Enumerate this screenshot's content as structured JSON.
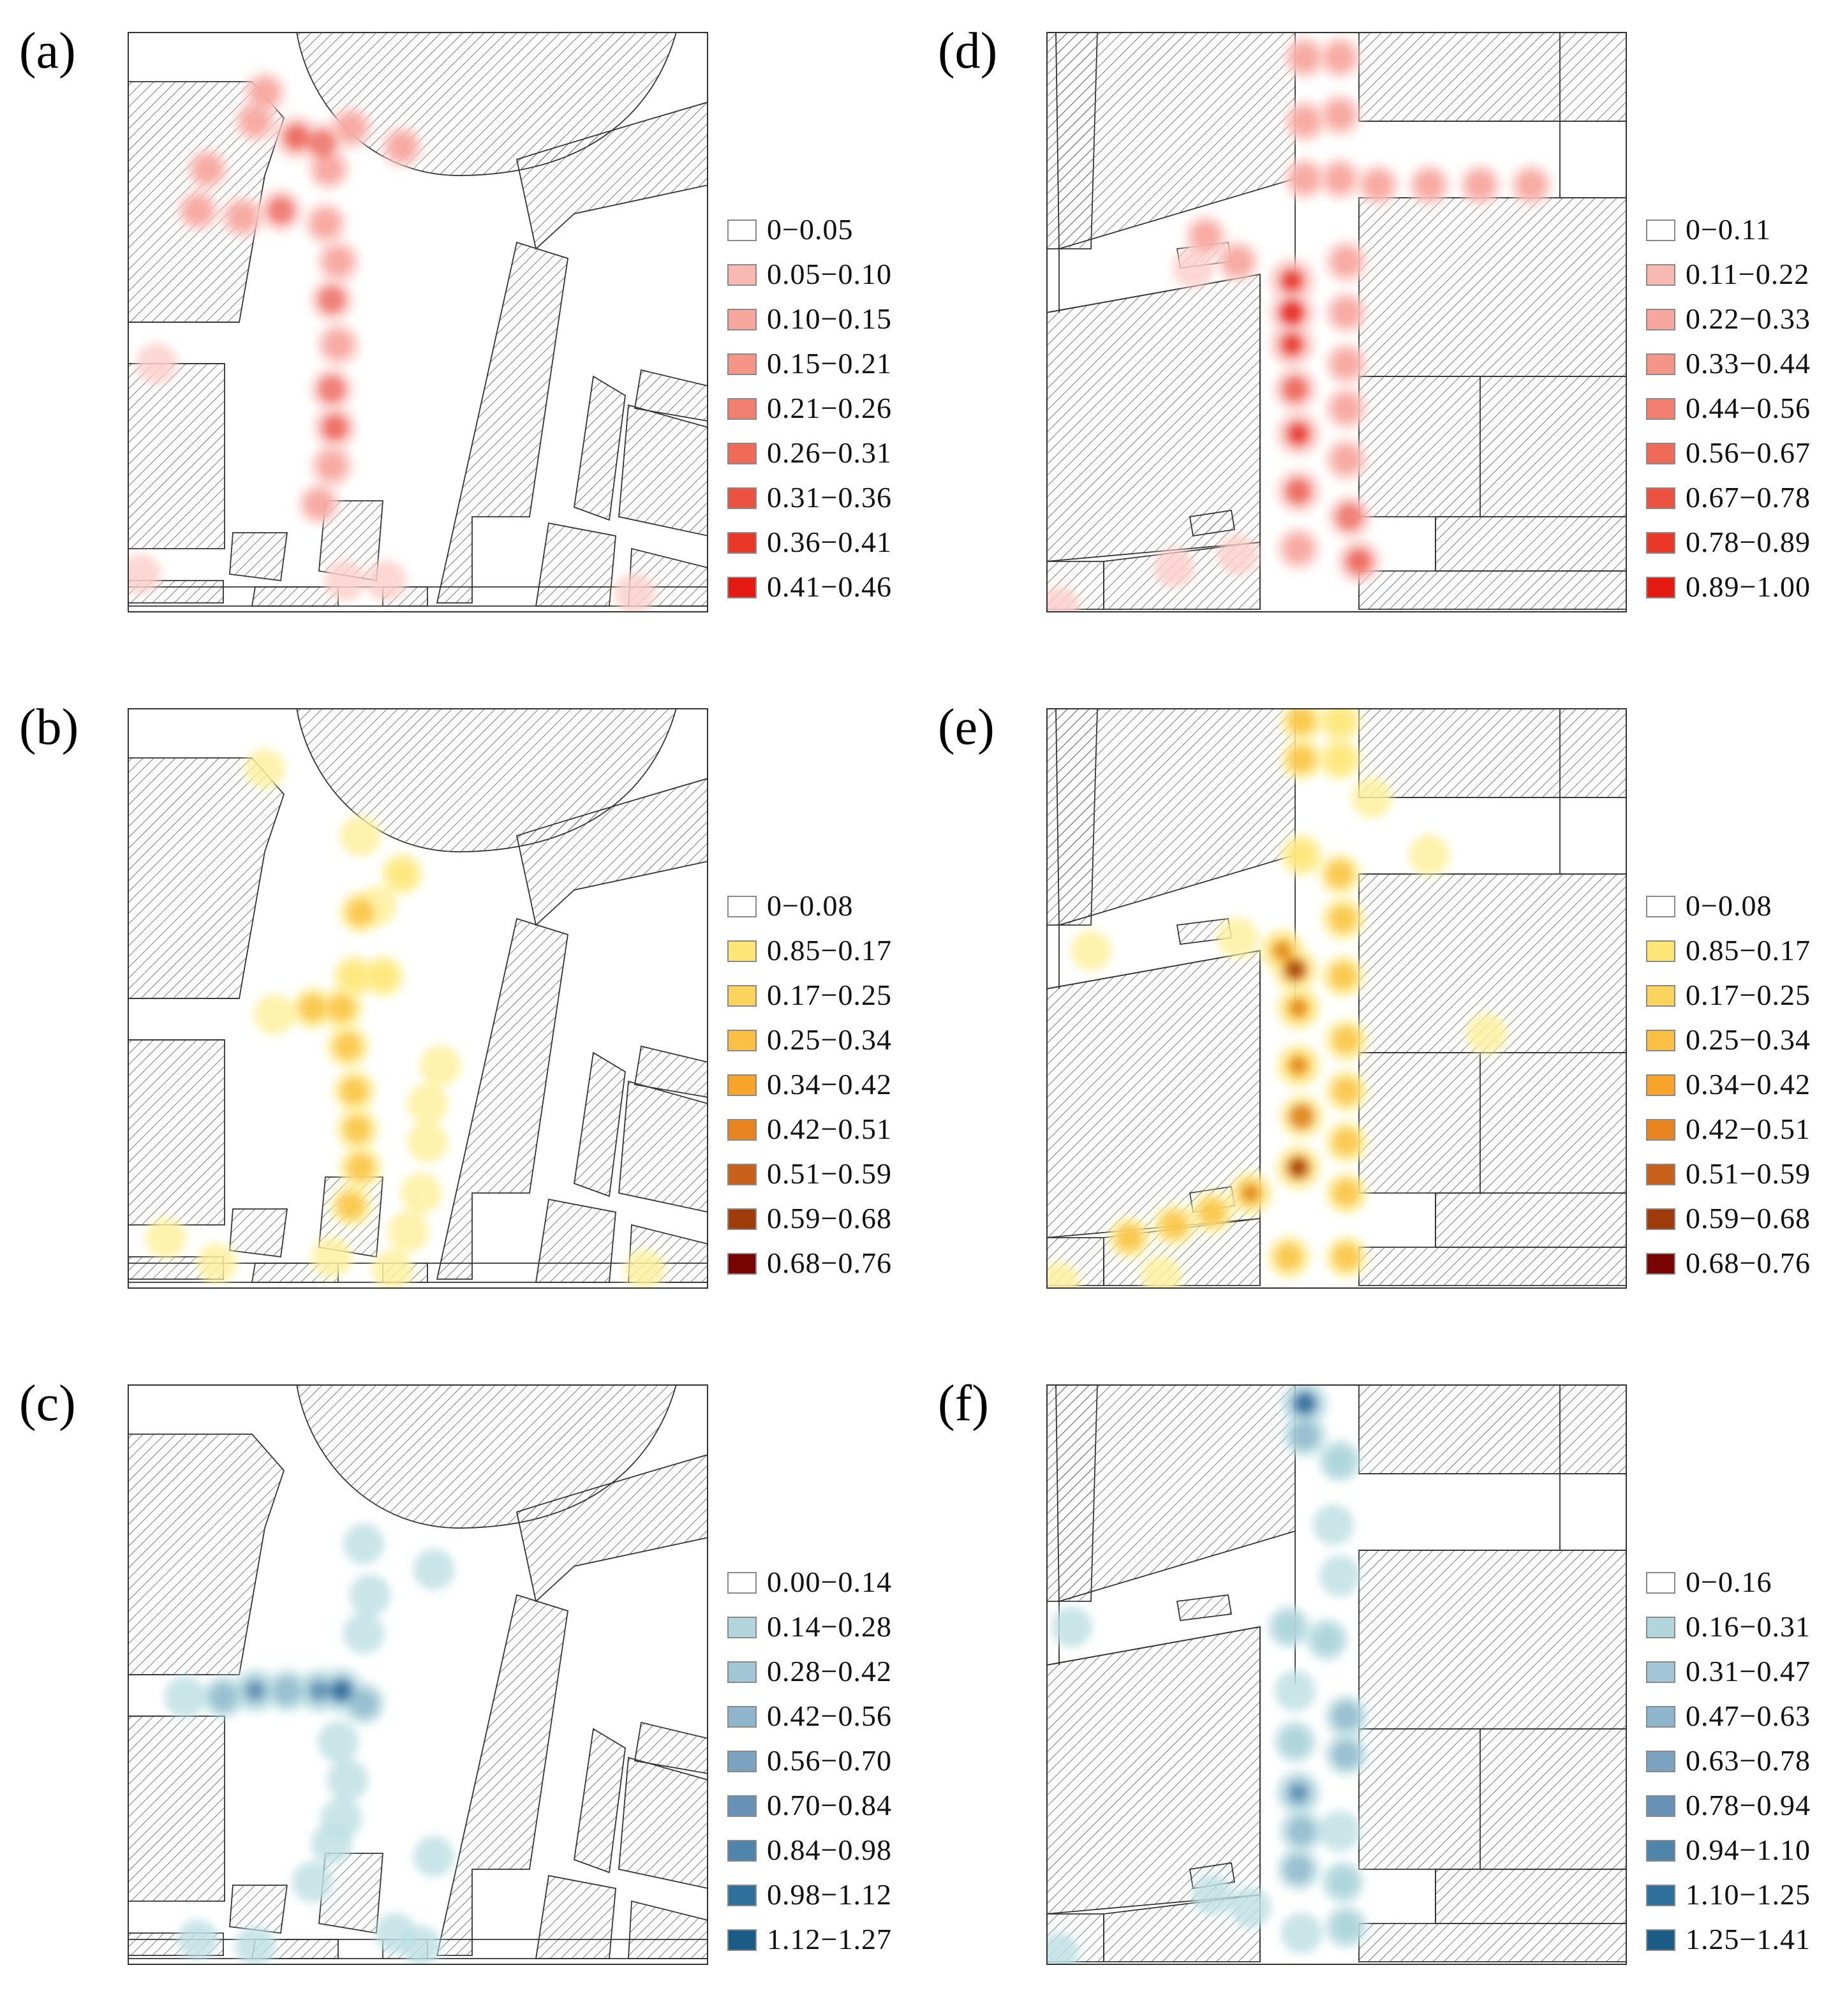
{
  "panels": {
    "a": {
      "label": "(a)",
      "layout": "A",
      "ramp": "red",
      "legend": [
        "0−0.05",
        "0.05−0.10",
        "0.10−0.15",
        "0.15−0.21",
        "0.21−0.26",
        "0.26−0.31",
        "0.31−0.36",
        "0.36−0.41",
        "0.41−0.46"
      ],
      "swatch_colors": [
        "#ffffff",
        "#f9b9b3",
        "#f8a79e",
        "#f59587",
        "#f27f6f",
        "#ef6a58",
        "#ec5240",
        "#e93827",
        "#e51a12"
      ]
    },
    "b": {
      "label": "(b)",
      "layout": "A",
      "ramp": "yellow",
      "legend": [
        "0−0.08",
        "0.85−0.17",
        "0.17−0.25",
        "0.25−0.34",
        "0.34−0.42",
        "0.42−0.51",
        "0.51−0.59",
        "0.59−0.68",
        "0.68−0.76"
      ],
      "swatch_colors": [
        "#ffffff",
        "#fde676",
        "#fcd35b",
        "#fbc043",
        "#f9a52c",
        "#e98520",
        "#c8621a",
        "#a03c0c",
        "#780404"
      ]
    },
    "c": {
      "label": "(c)",
      "layout": "A",
      "ramp": "blue",
      "legend": [
        "0.00−0.14",
        "0.14−0.28",
        "0.28−0.42",
        "0.42−0.56",
        "0.56−0.70",
        "0.70−0.84",
        "0.84−0.98",
        "0.98−1.12",
        "1.12−1.27"
      ],
      "swatch_colors": [
        "#ffffff",
        "#b3d5de",
        "#a2c6d5",
        "#8fb5cc",
        "#7ba3c0",
        "#6892b5",
        "#4f84ab",
        "#2f6f9c",
        "#1b5c87"
      ]
    },
    "d": {
      "label": "(d)",
      "layout": "B",
      "ramp": "red",
      "legend": [
        "0−0.11",
        "0.11−0.22",
        "0.22−0.33",
        "0.33−0.44",
        "0.44−0.56",
        "0.56−0.67",
        "0.67−0.78",
        "0.78−0.89",
        "0.89−1.00"
      ],
      "swatch_colors": [
        "#ffffff",
        "#f9b9b3",
        "#f8a79e",
        "#f59587",
        "#f27f6f",
        "#ef6a58",
        "#ec5240",
        "#e93827",
        "#e51a12"
      ]
    },
    "e": {
      "label": "(e)",
      "layout": "B",
      "ramp": "yellow",
      "legend": [
        "0−0.08",
        "0.85−0.17",
        "0.17−0.25",
        "0.25−0.34",
        "0.34−0.42",
        "0.42−0.51",
        "0.51−0.59",
        "0.59−0.68",
        "0.68−0.76"
      ],
      "swatch_colors": [
        "#ffffff",
        "#fde676",
        "#fcd35b",
        "#fbc043",
        "#f9a52c",
        "#e98520",
        "#c8621a",
        "#a03c0c",
        "#780404"
      ]
    },
    "f": {
      "label": "(f)",
      "layout": "B",
      "ramp": "blue",
      "legend": [
        "0−0.16",
        "0.16−0.31",
        "0.31−0.47",
        "0.47−0.63",
        "0.63−0.78",
        "0.78−0.94",
        "0.94−1.10",
        "1.10−1.25",
        "1.25−1.41"
      ],
      "swatch_colors": [
        "#ffffff",
        "#b3d5de",
        "#a2c6d5",
        "#8fb5cc",
        "#7ba3c0",
        "#6892b5",
        "#4f84ab",
        "#2f6f9c",
        "#1b5c87"
      ]
    }
  },
  "colors": {
    "red": [
      "#fbd0cb",
      "#f6a199",
      "#ee6f63",
      "#e8352a",
      "#e3140e"
    ],
    "yellow": [
      "#fff0a0",
      "#fde676",
      "#f9c23d",
      "#e08a1f",
      "#9e3b0a",
      "#6e0606"
    ],
    "blue": [
      "#bfe0e4",
      "#a9d2d9",
      "#8fb8cc",
      "#5f8fb4",
      "#2d6d9a",
      "#145683"
    ]
  }
}
